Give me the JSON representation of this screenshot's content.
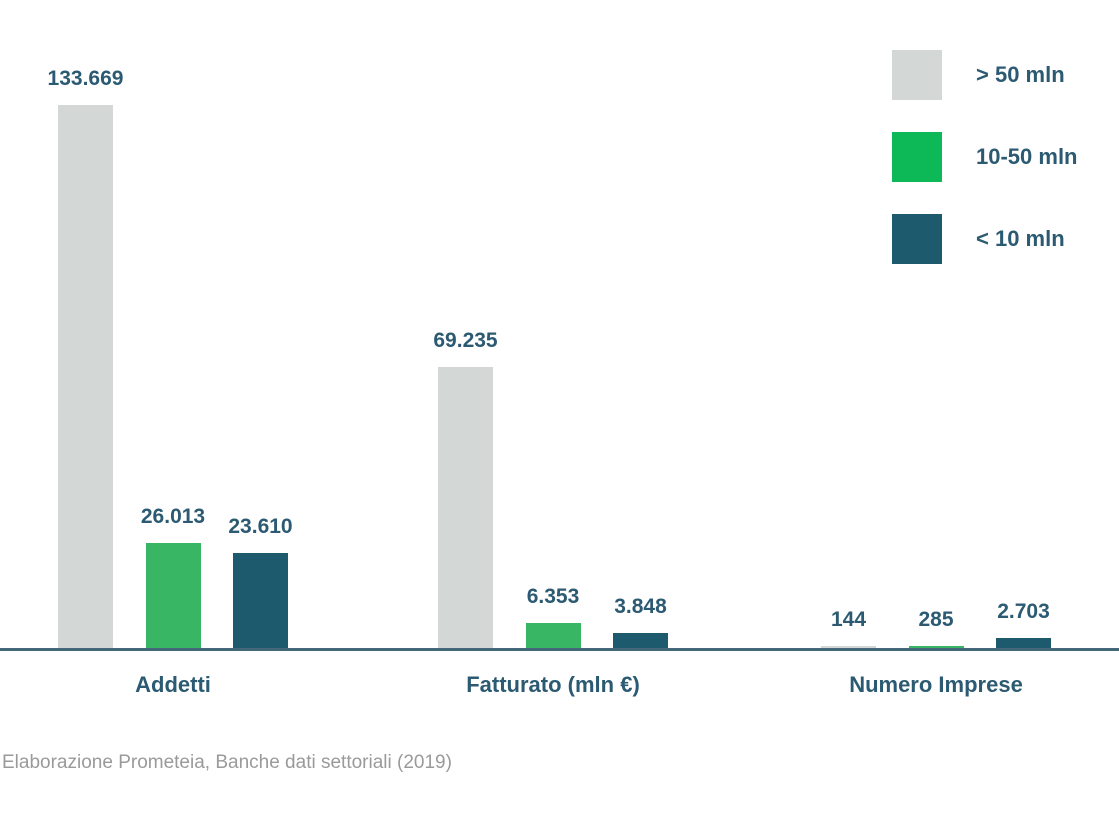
{
  "chart_data": {
    "type": "bar",
    "title": "",
    "categories": [
      "Addetti",
      "Fatturato (mln €)",
      "Numero Imprese"
    ],
    "series": [
      {
        "name": "> 50 mln",
        "color": "#d3d7d6",
        "values": [
          133669,
          69235,
          144
        ],
        "labels": [
          "133.669",
          "69.235",
          "144"
        ]
      },
      {
        "name": "10-50 mln",
        "color": "#39b663",
        "values": [
          26013,
          6353,
          285
        ],
        "labels": [
          "26.013",
          "6.353",
          "285"
        ]
      },
      {
        "name": "< 10 mln",
        "color": "#1d5a6e",
        "values": [
          23610,
          3848,
          2703
        ],
        "labels": [
          "23.610",
          "3.848",
          "2.703"
        ]
      }
    ],
    "ylim": [
      0,
      140000
    ],
    "grid": false,
    "y_axis_shown": false,
    "legend_position": "top-right",
    "value_labels_above_bars": true,
    "number_format": "italian-thousands-dot"
  },
  "legend": {
    "items": [
      {
        "label": "> 50 mln",
        "color": "#d3d7d6"
      },
      {
        "label": "10-50 mln",
        "color": "#0db857"
      },
      {
        "label": "< 10 mln",
        "color": "#1d5a6e"
      }
    ]
  },
  "colors": {
    "background": "#ffffff",
    "axis_line": "#44677a",
    "value_text": "#2b5a72",
    "category_text": "#2b5a72",
    "legend_text": "#2b5a72",
    "footer_text": "#9a9a9a",
    "bar_gray": "#d3d7d6",
    "bar_green": "#39b663",
    "bar_teal": "#1d5a6e"
  },
  "footer": {
    "source_note": "Elaborazione Prometeia, Banche dati settoriali (2019)"
  }
}
